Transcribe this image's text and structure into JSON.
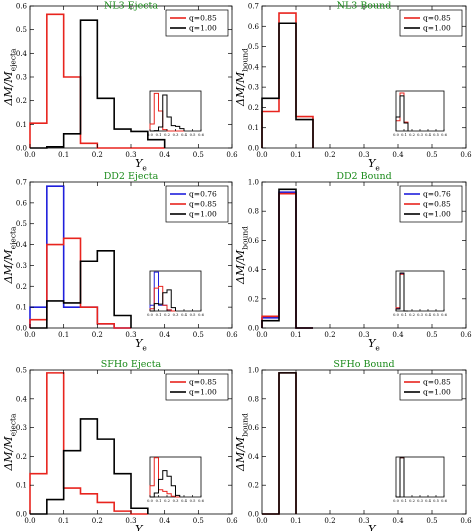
{
  "colors": {
    "q076": "#1f1fdc",
    "q085": "#e8241e",
    "q100": "#000000",
    "title": "#1a8a1a"
  },
  "chart_data": [
    {
      "type": "histogram",
      "title": "NL3 Ejecta",
      "xlabel": "Y_e",
      "ylabel": "ΔM/M_ejecta",
      "xlim": [
        0,
        0.6
      ],
      "ylim": [
        0,
        0.6
      ],
      "xticks": [
        "0.0",
        "0.1",
        "0.2",
        "0.3",
        "0.4",
        "0.5",
        "0.6"
      ],
      "yticks": [
        "0.0",
        "0.1",
        "0.2",
        "0.3",
        "0.4",
        "0.5",
        "0.6"
      ],
      "legend": "top-right",
      "bin_edges": [
        0.0,
        0.05,
        0.1,
        0.15,
        0.2,
        0.25,
        0.3,
        0.35,
        0.4
      ],
      "series": [
        {
          "name": "q=0.85",
          "color": "q085",
          "values": [
            0.105,
            0.565,
            0.3,
            0.02,
            0.0,
            0.0,
            0.0,
            0.0
          ]
        },
        {
          "name": "q=1.00",
          "color": "q100",
          "values": [
            0.0,
            0.005,
            0.06,
            0.54,
            0.21,
            0.08,
            0.07,
            0.035
          ]
        }
      ],
      "inset": {
        "xticks": [
          "0.0",
          "0.1",
          "0.2",
          "0.3",
          "0.4",
          "0.5",
          "0.6"
        ]
      }
    },
    {
      "type": "histogram",
      "title": "NL3 Bound",
      "xlabel": "Y_e",
      "ylabel": "ΔM/M_bound",
      "xlim": [
        0,
        0.6
      ],
      "ylim": [
        0,
        0.7
      ],
      "xticks": [
        "0.0",
        "0.1",
        "0.2",
        "0.3",
        "0.4",
        "0.5",
        "0.6"
      ],
      "yticks": [
        "0.0",
        "0.1",
        "0.2",
        "0.3",
        "0.4",
        "0.5",
        "0.6",
        "0.7"
      ],
      "legend": "top-right",
      "bin_edges": [
        0.0,
        0.05,
        0.1,
        0.15
      ],
      "series": [
        {
          "name": "q=0.85",
          "color": "q085",
          "values": [
            0.18,
            0.665,
            0.155
          ]
        },
        {
          "name": "q=1.00",
          "color": "q100",
          "values": [
            0.245,
            0.615,
            0.14
          ]
        }
      ],
      "inset": {
        "xticks": [
          "0.0",
          "0.1",
          "0.2",
          "0.3",
          "0.4",
          "0.5",
          "0.6"
        ]
      }
    },
    {
      "type": "histogram",
      "title": "DD2 Ejecta",
      "xlabel": "Y_e",
      "ylabel": "ΔM/M_ejecta",
      "xlim": [
        0,
        0.6
      ],
      "ylim": [
        0,
        0.7
      ],
      "xticks": [
        "0.0",
        "0.1",
        "0.2",
        "0.3",
        "0.4",
        "0.5",
        "0.6"
      ],
      "yticks": [
        "0.0",
        "0.1",
        "0.2",
        "0.3",
        "0.4",
        "0.5",
        "0.6",
        "0.7"
      ],
      "legend": "top-right",
      "bin_edges": [
        0.0,
        0.05,
        0.1,
        0.15,
        0.2,
        0.25,
        0.3
      ],
      "series": [
        {
          "name": "q=0.76",
          "color": "q076",
          "values": [
            0.1,
            0.68,
            0.1,
            0.1,
            0.02,
            0.0
          ]
        },
        {
          "name": "q=0.85",
          "color": "q085",
          "values": [
            0.04,
            0.4,
            0.43,
            0.1,
            0.02,
            0.0
          ]
        },
        {
          "name": "q=1.00",
          "color": "q100",
          "values": [
            0.0,
            0.13,
            0.12,
            0.32,
            0.37,
            0.06
          ]
        }
      ],
      "inset": {
        "xticks": [
          "0.0",
          "0.1",
          "0.2",
          "0.3",
          "0.4",
          "0.5",
          "0.6"
        ]
      }
    },
    {
      "type": "histogram",
      "title": "DD2 Bound",
      "xlabel": "Y_e",
      "ylabel": "ΔM/M_bound",
      "xlim": [
        0,
        0.6
      ],
      "ylim": [
        0,
        1.0
      ],
      "xticks": [
        "0.0",
        "0.1",
        "0.2",
        "0.3",
        "0.4",
        "0.5",
        "0.6"
      ],
      "yticks": [
        "0.0",
        "0.2",
        "0.4",
        "0.6",
        "0.8",
        "1.0"
      ],
      "legend": "top-right",
      "bin_edges": [
        0.0,
        0.05,
        0.1,
        0.15
      ],
      "series": [
        {
          "name": "q=0.76",
          "color": "q076",
          "values": [
            0.07,
            0.93,
            0.0
          ]
        },
        {
          "name": "q=0.85",
          "color": "q085",
          "values": [
            0.08,
            0.92,
            0.0
          ]
        },
        {
          "name": "q=1.00",
          "color": "q100",
          "values": [
            0.05,
            0.95,
            0.0
          ]
        }
      ],
      "inset": {
        "xticks": [
          "0.0",
          "0.1",
          "0.2",
          "0.3",
          "0.4",
          "0.5",
          "0.6"
        ]
      }
    },
    {
      "type": "histogram",
      "title": "SFHo Ejecta",
      "xlabel": "Y_e",
      "ylabel": "ΔM/M_ejecta",
      "xlim": [
        0,
        0.6
      ],
      "ylim": [
        0,
        0.5
      ],
      "xticks": [
        "0.0",
        "0.1",
        "0.2",
        "0.3",
        "0.4",
        "0.5",
        "0.6"
      ],
      "yticks": [
        "0.0",
        "0.1",
        "0.2",
        "0.3",
        "0.4",
        "0.5"
      ],
      "legend": "top-right",
      "bin_edges": [
        0.0,
        0.05,
        0.1,
        0.15,
        0.2,
        0.25,
        0.3,
        0.35
      ],
      "series": [
        {
          "name": "q=0.85",
          "color": "q085",
          "values": [
            0.14,
            0.49,
            0.09,
            0.07,
            0.04,
            0.01,
            0.0
          ]
        },
        {
          "name": "q=1.00",
          "color": "q100",
          "values": [
            0.0,
            0.05,
            0.22,
            0.33,
            0.26,
            0.14,
            0.02
          ]
        }
      ],
      "inset": {
        "xticks": [
          "0.0",
          "0.1",
          "0.2",
          "0.3",
          "0.4",
          "0.5",
          "0.6"
        ]
      }
    },
    {
      "type": "histogram",
      "title": "SFHo Bound",
      "xlabel": "Y_e",
      "ylabel": "ΔM/M_bound",
      "xlim": [
        0,
        0.6
      ],
      "ylim": [
        0,
        1.0
      ],
      "xticks": [
        "0.0",
        "0.1",
        "0.2",
        "0.3",
        "0.4",
        "0.5",
        "0.6"
      ],
      "yticks": [
        "0.0",
        "0.2",
        "0.4",
        "0.6",
        "0.8",
        "1.0"
      ],
      "legend": "top-right",
      "bin_edges": [
        0.0,
        0.05,
        0.1
      ],
      "series": [
        {
          "name": "q=0.85",
          "color": "q085",
          "values": [
            0.0,
            0.98
          ]
        },
        {
          "name": "q=1.00",
          "color": "q100",
          "values": [
            0.0,
            0.98
          ]
        }
      ],
      "inset": {
        "xticks": [
          "0.0",
          "0.1",
          "0.2",
          "0.3",
          "0.4",
          "0.5",
          "0.6"
        ]
      }
    }
  ]
}
